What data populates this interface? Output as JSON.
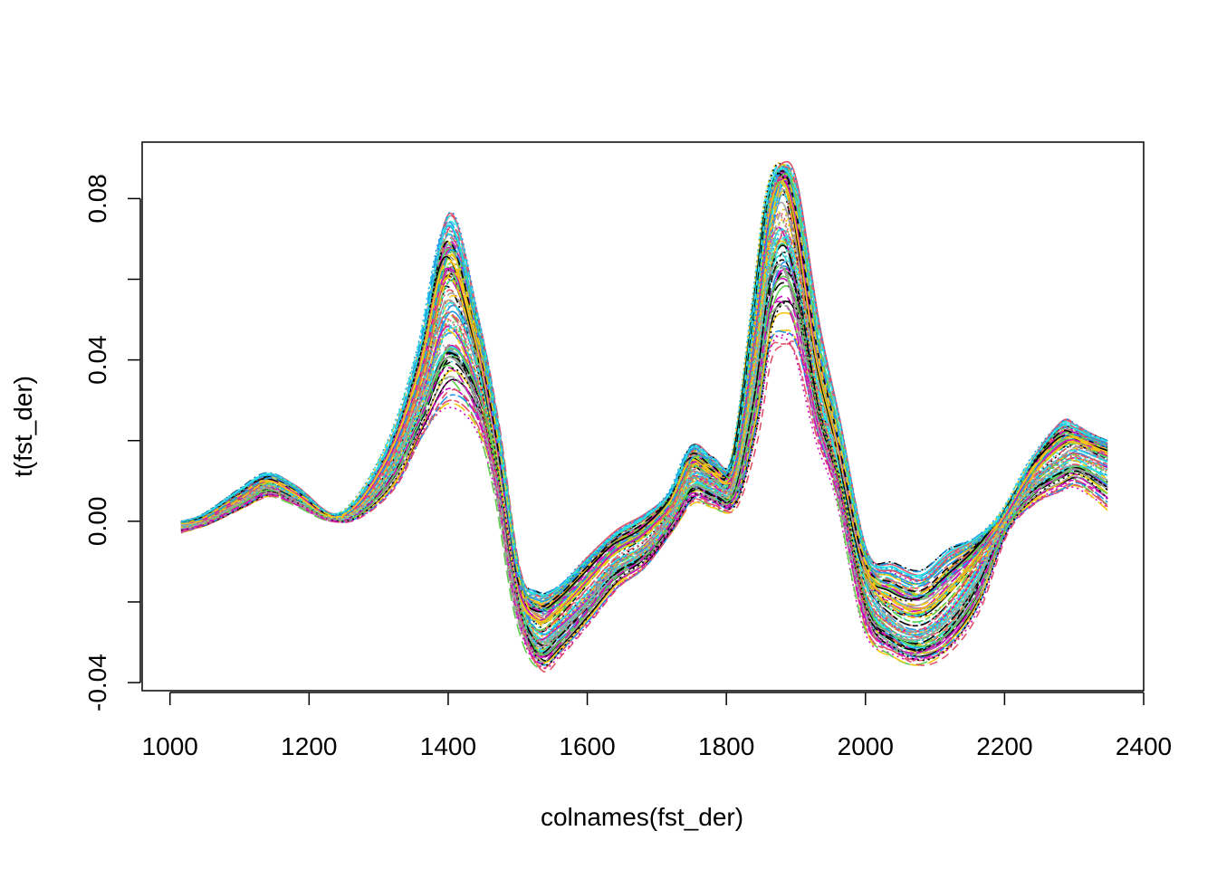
{
  "chart_data": {
    "type": "line",
    "title": "",
    "xlabel": "colnames(fst_der)",
    "ylabel": "t(fst_der)",
    "xlim": [
      960,
      2400
    ],
    "ylim": [
      -0.042,
      0.094
    ],
    "x_ticks": [
      1000,
      1200,
      1400,
      1600,
      1800,
      2000,
      2200,
      2400
    ],
    "x_tick_labels": [
      "1000",
      "1200",
      "1400",
      "1600",
      "1800",
      "2000",
      "2200",
      "2400"
    ],
    "y_ticks": [
      -0.04,
      -0.02,
      0.0,
      0.02,
      0.04,
      0.06,
      0.08
    ],
    "y_tick_labels": [
      "-0.04",
      "",
      "0.00",
      "",
      "0.04",
      "",
      "0.08"
    ],
    "grid": false,
    "legend": "none",
    "n_series_approx": 120,
    "series_colors": [
      "#000000",
      "#DF536B",
      "#61D04F",
      "#2297E6",
      "#28E2E5",
      "#CD0BBC",
      "#F5C710",
      "#9E9E9E"
    ],
    "line_styles": [
      "solid",
      "dashed",
      "dotted",
      "dotdash",
      "longdash",
      "twodash"
    ],
    "x": [
      1016,
      1050,
      1100,
      1140,
      1180,
      1230,
      1270,
      1320,
      1360,
      1400,
      1440,
      1470,
      1500,
      1530,
      1560,
      1600,
      1640,
      1680,
      1720,
      1750,
      1780,
      1810,
      1840,
      1860,
      1880,
      1900,
      1930,
      1960,
      2000,
      2040,
      2080,
      2120,
      2160,
      2200,
      2240,
      2280,
      2300,
      2320,
      2348
    ],
    "mean_curve": [
      -0.001,
      0.0,
      0.005,
      0.009,
      0.006,
      0.001,
      0.003,
      0.015,
      0.032,
      0.055,
      0.04,
      0.015,
      -0.018,
      -0.028,
      -0.025,
      -0.018,
      -0.01,
      -0.006,
      0.002,
      0.012,
      0.01,
      0.01,
      0.04,
      0.07,
      0.083,
      0.07,
      0.035,
      0.015,
      -0.015,
      -0.025,
      -0.027,
      -0.022,
      -0.012,
      0.0,
      0.01,
      0.016,
      0.018,
      0.017,
      0.015
    ],
    "min_envelope": [
      -0.003,
      -0.001,
      0.003,
      0.006,
      0.004,
      0.0,
      0.001,
      0.008,
      0.02,
      0.027,
      0.022,
      0.006,
      -0.024,
      -0.037,
      -0.033,
      -0.025,
      -0.017,
      -0.012,
      -0.003,
      0.004,
      0.003,
      0.003,
      0.02,
      0.04,
      0.042,
      0.04,
      0.02,
      0.005,
      -0.028,
      -0.034,
      -0.036,
      -0.032,
      -0.022,
      -0.003,
      0.004,
      0.007,
      0.008,
      0.006,
      0.002
    ],
    "max_envelope": [
      0.0,
      0.002,
      0.008,
      0.012,
      0.009,
      0.002,
      0.006,
      0.022,
      0.045,
      0.077,
      0.052,
      0.025,
      -0.011,
      -0.017,
      -0.015,
      -0.008,
      -0.002,
      0.002,
      0.008,
      0.019,
      0.016,
      0.016,
      0.055,
      0.082,
      0.089,
      0.083,
      0.05,
      0.026,
      -0.007,
      -0.01,
      -0.012,
      -0.006,
      -0.003,
      0.003,
      0.016,
      0.025,
      0.024,
      0.022,
      0.02
    ]
  }
}
